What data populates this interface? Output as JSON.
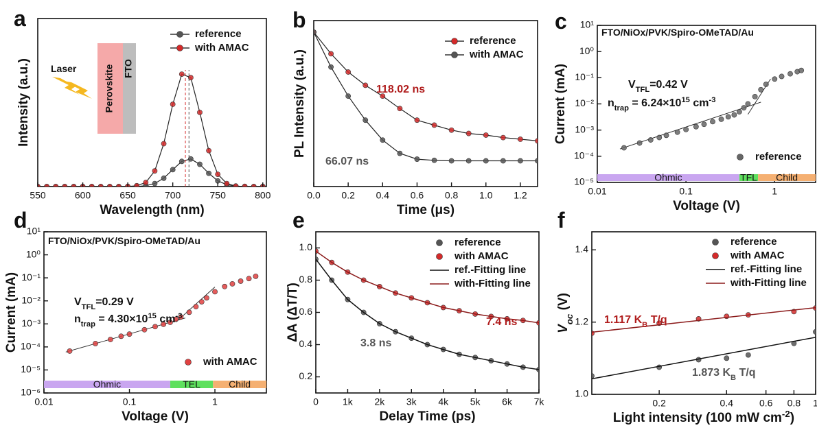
{
  "chart_data": [
    {
      "type": "line",
      "panel": "a",
      "xlabel": "Wavelength (nm)",
      "ylabel": "Intensity (a.u.)",
      "xlim": [
        550,
        804
      ],
      "ylim": [
        0,
        1.45
      ],
      "xticks": [
        550,
        600,
        650,
        700,
        750,
        800
      ],
      "series": [
        {
          "name": "reference",
          "color": "#555555",
          "style": "markers+line",
          "x": [
            550,
            560,
            570,
            580,
            590,
            600,
            610,
            620,
            630,
            640,
            650,
            660,
            670,
            680,
            690,
            700,
            710,
            720,
            730,
            740,
            750,
            760,
            770,
            780,
            790,
            800
          ],
          "values": [
            0,
            0,
            0,
            0,
            0,
            0,
            0,
            0,
            0,
            0,
            0,
            0.001,
            0.007,
            0.026,
            0.072,
            0.146,
            0.217,
            0.238,
            0.192,
            0.114,
            0.049,
            0.016,
            0.004,
            0.001,
            0,
            0
          ]
        },
        {
          "name": "with AMAC",
          "color": "#d42a2a",
          "style": "markers+line",
          "x": [
            550,
            560,
            570,
            580,
            590,
            600,
            610,
            620,
            630,
            640,
            650,
            660,
            670,
            680,
            690,
            700,
            710,
            720,
            730,
            740,
            750,
            760,
            770,
            780,
            790,
            800
          ],
          "values": [
            0,
            0,
            0,
            0,
            0,
            0,
            0,
            0,
            0,
            0,
            0.001,
            0.007,
            0.035,
            0.135,
            0.37,
            0.71,
            0.97,
            0.94,
            0.64,
            0.31,
            0.106,
            0.026,
            0.004,
            0.001,
            0,
            0
          ]
        }
      ],
      "peak_lines": {
        "x": [
          714,
          718
        ],
        "colors": [
          "#d42a2a",
          "#555555"
        ]
      },
      "inset_labels": [
        "Laser",
        "Perovskite",
        "FTO"
      ]
    },
    {
      "type": "line",
      "panel": "b",
      "xlabel": "Time (μs)",
      "ylabel": "PL Intensity (a.u.)",
      "xlim": [
        0,
        1.3
      ],
      "ylim": [
        0,
        1
      ],
      "xticks": [
        {
          "value": 0,
          "label": "0.0"
        },
        0.2,
        0.4,
        0.6,
        0.8,
        {
          "value": 1,
          "label": "1.0"
        },
        1.2
      ],
      "series": [
        {
          "name": "reference",
          "color": "#d42a2a",
          "style": "markers+line",
          "x": [
            0,
            0.1,
            0.2,
            0.3,
            0.4,
            0.5,
            0.6,
            0.7,
            0.8,
            0.9,
            1.0,
            1.1,
            1.2,
            1.3
          ],
          "values": [
            0.93,
            0.8,
            0.69,
            0.61,
            0.545,
            0.47,
            0.4,
            0.37,
            0.34,
            0.32,
            0.31,
            0.295,
            0.285,
            0.275
          ]
        },
        {
          "name": "with AMAC",
          "color": "#555555",
          "style": "markers+line",
          "x": [
            0,
            0.1,
            0.2,
            0.3,
            0.4,
            0.5,
            0.6,
            0.7,
            0.8,
            0.9,
            1.0,
            1.1,
            1.2,
            1.3
          ],
          "values": [
            0.93,
            0.72,
            0.545,
            0.4,
            0.28,
            0.2,
            0.165,
            0.158,
            0.155,
            0.155,
            0.155,
            0.155,
            0.155,
            0.155
          ]
        }
      ],
      "annotations": [
        {
          "parts": [
            "118.02 ns"
          ],
          "color": "#b01c1c"
        },
        {
          "parts": [
            "66.07 ns"
          ],
          "color": "#555555"
        }
      ]
    },
    {
      "type": "scatter",
      "panel": "c",
      "xlabel": "Voltage (V)",
      "ylabel": "Current (mA)",
      "xscale": "log",
      "yscale": "log",
      "xlim": [
        0.01,
        2.9
      ],
      "ylim": [
        1e-05,
        10
      ],
      "xticks": [
        0.01,
        0.1,
        1
      ],
      "yticks": [
        {
          "value": 1e-05,
          "label": "10⁻⁵"
        },
        {
          "value": 0.0001,
          "label": "10⁻⁴"
        },
        {
          "value": 0.001,
          "label": "10⁻³"
        },
        {
          "value": 0.01,
          "label": "10⁻²"
        },
        {
          "value": 0.1,
          "label": "10⁻¹"
        },
        {
          "value": 1,
          "label": "10⁰"
        },
        {
          "value": 10,
          "label": "10¹"
        }
      ],
      "device_label": "FTO/NiOx/PVK/Spiro-OMeTAD/Au",
      "series": [
        {
          "name": "reference",
          "color": "#666666",
          "style": "markers",
          "x": [
            0.02,
            0.03,
            0.04,
            0.05,
            0.06,
            0.08,
            0.1,
            0.13,
            0.16,
            0.2,
            0.25,
            0.3,
            0.35,
            0.4,
            0.45,
            0.5,
            0.6,
            0.7,
            0.8,
            1.0,
            1.2,
            1.5,
            1.8,
            2.0
          ],
          "values": [
            0.00021,
            0.00032,
            0.00042,
            0.00052,
            0.00063,
            0.00083,
            0.00105,
            0.00135,
            0.00166,
            0.0021,
            0.0026,
            0.0032,
            0.0038,
            0.005,
            0.0071,
            0.01,
            0.019,
            0.035,
            0.056,
            0.089,
            0.112,
            0.141,
            0.17,
            0.19
          ]
        }
      ],
      "fit_lines": [
        {
          "x": [
            0.018,
            0.7
          ],
          "values": [
            0.00019,
            0.0117
          ]
        },
        {
          "x": [
            0.5,
            0.9
          ],
          "values": [
            0.004,
            0.09
          ]
        }
      ],
      "regions": [
        {
          "name": "Ohmic",
          "from": 0.01,
          "to": 0.4,
          "color": "#c9a6f0"
        },
        {
          "name": "TFL",
          "from": 0.4,
          "to": 0.65,
          "color": "#5ee05e"
        },
        {
          "name": "Child",
          "from": 0.65,
          "to": 2.9,
          "color": "#f5b072"
        }
      ],
      "annotations": [
        {
          "parts": [
            "V",
            {
              "text": "TFL",
              "script": "sub"
            },
            "=0.42 V"
          ],
          "color": "#111111"
        },
        {
          "parts": [
            "n",
            {
              "text": "trap",
              "script": "sub"
            },
            " = 6.24×10",
            {
              "text": "15",
              "script": "sup"
            },
            " cm",
            {
              "text": "-3",
              "script": "sup"
            }
          ],
          "color": "#111111"
        }
      ]
    },
    {
      "type": "scatter",
      "panel": "d",
      "xlabel": "Voltage (V)",
      "ylabel": "Current (mA)",
      "xscale": "log",
      "yscale": "log",
      "xlim": [
        0.01,
        4
      ],
      "ylim": [
        1e-06,
        10
      ],
      "xticks": [
        0.01,
        0.1,
        1
      ],
      "yticks": [
        {
          "value": 1e-06,
          "label": "10⁻⁶"
        },
        {
          "value": 1e-05,
          "label": "10⁻⁵"
        },
        {
          "value": 0.0001,
          "label": "10⁻⁴"
        },
        {
          "value": 0.001,
          "label": "10⁻³"
        },
        {
          "value": 0.01,
          "label": "10⁻²"
        },
        {
          "value": 0.1,
          "label": "10⁻¹"
        },
        {
          "value": 1,
          "label": "10⁰"
        },
        {
          "value": 10,
          "label": "10¹"
        }
      ],
      "device_label": "FTO/NiOx/PVK/Spiro-OMeTAD/Au",
      "series": [
        {
          "name": "with AMAC",
          "color": "#e04040",
          "style": "markers",
          "x": [
            0.02,
            0.04,
            0.06,
            0.08,
            0.1,
            0.15,
            0.2,
            0.25,
            0.3,
            0.35,
            0.4,
            0.5,
            0.6,
            0.7,
            0.8,
            1.0,
            1.3,
            1.6,
            2.0,
            2.5,
            3.0
          ],
          "values": [
            6.6e-05,
            0.00014,
            0.00021,
            0.00029,
            0.00036,
            0.00056,
            0.00076,
            0.00096,
            0.00117,
            0.0016,
            0.002,
            0.0032,
            0.0056,
            0.0091,
            0.0135,
            0.025,
            0.042,
            0.055,
            0.072,
            0.093,
            0.117
          ]
        }
      ],
      "fit_lines": [
        {
          "x": [
            0.018,
            0.45
          ],
          "values": [
            6e-05,
            0.0018
          ]
        },
        {
          "x": [
            0.35,
            1.0
          ],
          "values": [
            0.0012,
            0.04
          ]
        }
      ],
      "regions": [
        {
          "name": "Ohmic",
          "from": 0.01,
          "to": 0.3,
          "color": "#c9a6f0"
        },
        {
          "name": "TEL",
          "from": 0.3,
          "to": 0.95,
          "color": "#5ee05e"
        },
        {
          "name": "Child",
          "from": 0.95,
          "to": 4,
          "color": "#f5b072"
        }
      ],
      "annotations": [
        {
          "parts": [
            "V",
            {
              "text": "TFL",
              "script": "sub"
            },
            "=0.29 V"
          ],
          "color": "#111111"
        },
        {
          "parts": [
            "n",
            {
              "text": "trap",
              "script": "sub"
            },
            " = 4.30×10",
            {
              "text": "15",
              "script": "sup"
            },
            " cm",
            {
              "text": "-3",
              "script": "sup"
            }
          ],
          "color": "#111111"
        }
      ]
    },
    {
      "type": "line",
      "panel": "e",
      "xlabel": "Delay Time (ps)",
      "ylabel": "ΔA (ΔT/T)",
      "xlim": [
        0,
        7000
      ],
      "ylim": [
        0.1,
        1.1
      ],
      "xticks": [
        0,
        {
          "value": 1000,
          "label": "1k"
        },
        {
          "value": 2000,
          "label": "2k"
        },
        {
          "value": 3000,
          "label": "3k"
        },
        {
          "value": 4000,
          "label": "4k"
        },
        {
          "value": 5000,
          "label": "5k"
        },
        {
          "value": 6000,
          "label": "6k"
        },
        {
          "value": 7000,
          "label": "7k"
        }
      ],
      "yticks": [
        0.2,
        0.4,
        0.6,
        0.8,
        {
          "value": 1,
          "label": "1.0"
        }
      ],
      "series": [
        {
          "name": "reference",
          "color": "#555555",
          "style": "markers",
          "x": [
            0,
            500,
            1000,
            1500,
            2000,
            2500,
            3000,
            3500,
            4000,
            4500,
            5000,
            5500,
            6000,
            6500,
            7000
          ],
          "values": [
            0.93,
            0.8,
            0.68,
            0.6,
            0.53,
            0.48,
            0.44,
            0.4,
            0.37,
            0.34,
            0.32,
            0.3,
            0.28,
            0.26,
            0.245
          ]
        },
        {
          "name": "with AMAC",
          "color": "#d42a2a",
          "style": "markers",
          "x": [
            0,
            500,
            1000,
            1500,
            2000,
            2500,
            3000,
            3500,
            4000,
            4500,
            5000,
            5500,
            6000,
            6500,
            7000
          ],
          "values": [
            0.98,
            0.91,
            0.85,
            0.8,
            0.76,
            0.72,
            0.69,
            0.66,
            0.63,
            0.61,
            0.59,
            0.575,
            0.56,
            0.55,
            0.535
          ]
        },
        {
          "name": "ref.-Fitting line",
          "color": "#111111",
          "style": "line",
          "x": [
            0,
            500,
            1000,
            1500,
            2000,
            2500,
            3000,
            3500,
            4000,
            4500,
            5000,
            5500,
            6000,
            6500,
            7000
          ],
          "values": [
            0.93,
            0.8,
            0.68,
            0.6,
            0.53,
            0.48,
            0.44,
            0.4,
            0.37,
            0.34,
            0.32,
            0.3,
            0.28,
            0.26,
            0.245
          ]
        },
        {
          "name": "with-Fitting line",
          "color": "#8b1a1a",
          "style": "line",
          "x": [
            0,
            500,
            1000,
            1500,
            2000,
            2500,
            3000,
            3500,
            4000,
            4500,
            5000,
            5500,
            6000,
            6500,
            7000
          ],
          "values": [
            0.98,
            0.91,
            0.85,
            0.8,
            0.76,
            0.72,
            0.69,
            0.66,
            0.63,
            0.61,
            0.59,
            0.575,
            0.56,
            0.55,
            0.535
          ]
        }
      ],
      "annotations": [
        {
          "parts": [
            "7.4 ns"
          ],
          "color": "#b01c1c"
        },
        {
          "parts": [
            "3.8 ns"
          ],
          "color": "#555555"
        }
      ]
    },
    {
      "type": "scatter",
      "panel": "f",
      "xlabel": [
        "Light intensity (100 mW cm",
        {
          "text": "-2",
          "script": "sup"
        },
        ")"
      ],
      "ylabel": [
        {
          "text": "V",
          "style": "italic"
        },
        {
          "text": "oc",
          "script": "sub",
          "style": "italic"
        },
        " (V)"
      ],
      "xscale": "log",
      "xlim": [
        0.1,
        1
      ],
      "ylim": [
        1.0,
        1.45
      ],
      "xticks": [
        0.2,
        0.4,
        0.6,
        0.8,
        1
      ],
      "yticks": [
        {
          "value": 1,
          "label": "1.0"
        },
        1.2,
        1.4
      ],
      "series": [
        {
          "name": "reference",
          "color": "#555555",
          "style": "markers",
          "x": [
            0.1,
            0.2,
            0.3,
            0.4,
            0.5,
            0.8,
            1.0
          ],
          "values": [
            1.051,
            1.075,
            1.096,
            1.1,
            1.109,
            1.141,
            1.173
          ]
        },
        {
          "name": "with AMAC",
          "color": "#d42a2a",
          "style": "markers",
          "x": [
            0.1,
            0.2,
            0.3,
            0.4,
            0.5,
            0.8,
            1.0
          ],
          "values": [
            1.169,
            1.197,
            1.209,
            1.216,
            1.22,
            1.229,
            1.239
          ]
        },
        {
          "name": "ref.-Fitting line",
          "color": "#111111",
          "style": "line",
          "x": [
            0.1,
            1.0
          ],
          "values": [
            1.043,
            1.158
          ]
        },
        {
          "name": "with-Fitting line",
          "color": "#8b1a1a",
          "style": "line",
          "x": [
            0.1,
            1.0
          ],
          "values": [
            1.172,
            1.24
          ]
        }
      ],
      "annotations": [
        {
          "parts": [
            "1.117 K",
            {
              "text": "B",
              "script": "sub"
            },
            " T/q"
          ],
          "color": "#b01c1c"
        },
        {
          "parts": [
            "1.873 K",
            {
              "text": "B",
              "script": "sub"
            },
            " T/q"
          ],
          "color": "#555555"
        }
      ]
    }
  ]
}
